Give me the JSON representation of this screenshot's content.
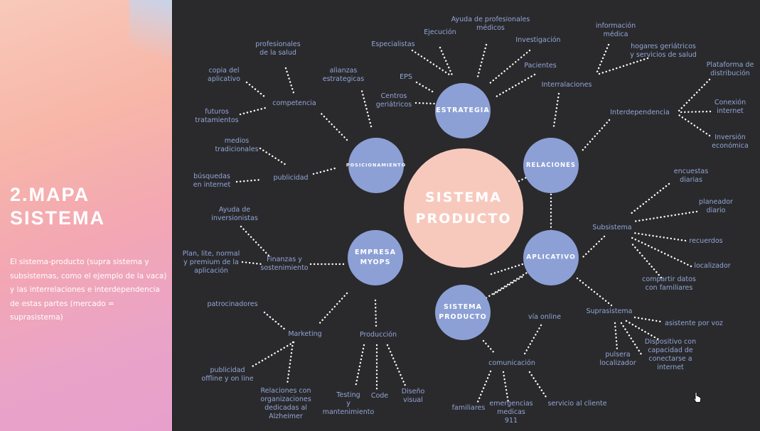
{
  "left_panel": {
    "title": "2.MAPA\nSISTEMA",
    "description": "El sistema-producto (supra sistema y subsistemas, como el ejemplo de la vaca) y las interrelaciones e interdependencia de estas partes (mercado = suprasistema)"
  },
  "colors": {
    "background": "#2a2a2c",
    "hub_fill": "#8ca0d6",
    "center_fill": "#f7c9bd",
    "label_text": "#93a6d8",
    "connector": "#ffffff"
  },
  "diagram": {
    "center": "SISTEMA\nPRODUCTO",
    "hubs": [
      {
        "id": "estrategia",
        "label": "ESTRATEGIA"
      },
      {
        "id": "relaciones",
        "label": "RELACIONES"
      },
      {
        "id": "aplicativo",
        "label": "APLICATIVO"
      },
      {
        "id": "sistema",
        "label": "SISTEMA\nPRODUCTO"
      },
      {
        "id": "empresa",
        "label": "EMPRESA\nMYOPS"
      },
      {
        "id": "posicionamiento",
        "label": "POSICIONAMIENTO"
      }
    ],
    "nodes": [
      {
        "id": "especialistas",
        "text": "Especialistas"
      },
      {
        "id": "ejecucion",
        "text": "Ejecución"
      },
      {
        "id": "ayuda_prof",
        "text": "Ayuda de profesionales\nmédicos"
      },
      {
        "id": "investigacion",
        "text": "Investigación"
      },
      {
        "id": "pacientes",
        "text": "Pacientes"
      },
      {
        "id": "eps",
        "text": "EPS"
      },
      {
        "id": "centros",
        "text": "Centros\ngeriátricos"
      },
      {
        "id": "info_medica",
        "text": "información\nmédica"
      },
      {
        "id": "hogares",
        "text": "hogares geriátricos\ny servicios de salud"
      },
      {
        "id": "interralaciones",
        "text": "Interralaciones"
      },
      {
        "id": "plataforma",
        "text": "Plataforma de\ndistribución"
      },
      {
        "id": "interdependencia",
        "text": "Interdependencia"
      },
      {
        "id": "conexion",
        "text": "Conexión\ninternet"
      },
      {
        "id": "inversion",
        "text": "Inversión\neconómica"
      },
      {
        "id": "encuestas",
        "text": "encuestas\ndiarias"
      },
      {
        "id": "planeador",
        "text": "planeador\ndiario"
      },
      {
        "id": "subsistema",
        "text": "Subsistema"
      },
      {
        "id": "recuerdos",
        "text": "recuerdos"
      },
      {
        "id": "localizador",
        "text": "localizador"
      },
      {
        "id": "compartir",
        "text": "compartir datos\ncon familiares"
      },
      {
        "id": "suprasistema",
        "text": "Suprasistema"
      },
      {
        "id": "asistente",
        "text": "asistente por voz"
      },
      {
        "id": "dispositivo",
        "text": "Dispositivo con\ncapacidad de\nconectarse a\ninternet"
      },
      {
        "id": "pulsera",
        "text": "pulsera\nlocalizador"
      },
      {
        "id": "via_online",
        "text": "vía online"
      },
      {
        "id": "comunicacion",
        "text": "comunicación"
      },
      {
        "id": "familiares",
        "text": "familiares"
      },
      {
        "id": "emergencias",
        "text": "emergencias\nmedicas\n911"
      },
      {
        "id": "servicio",
        "text": "servicio al cliente"
      },
      {
        "id": "produccion",
        "text": "Producción"
      },
      {
        "id": "testing",
        "text": "Testing\ny\nmantenimiento"
      },
      {
        "id": "code",
        "text": "Code"
      },
      {
        "id": "diseno",
        "text": "Diseño\nvisual"
      },
      {
        "id": "marketing",
        "text": "Marketing"
      },
      {
        "id": "patrocinadores",
        "text": "patrocinadores"
      },
      {
        "id": "publicidad_off",
        "text": "publicidad\noffline y on line"
      },
      {
        "id": "relaciones_org",
        "text": "Relaciones con\norganizaciones\ndedicadas al\nAlzheimer"
      },
      {
        "id": "ayuda_inv",
        "text": "Ayuda de\ninversionistas"
      },
      {
        "id": "finanzas",
        "text": "Finanzas y\nsostenimiento"
      },
      {
        "id": "plan_lite",
        "text": "Plan, lite, normal\ny premium de la\naplicación"
      },
      {
        "id": "profesionales",
        "text": "profesionales\nde la salud"
      },
      {
        "id": "copia",
        "text": "copia del\naplicativo"
      },
      {
        "id": "competencia",
        "text": "competencia"
      },
      {
        "id": "futuros",
        "text": "futuros\ntratamientos"
      },
      {
        "id": "alianzas",
        "text": "alianzas\nestrategicas"
      },
      {
        "id": "medios",
        "text": "medios\ntradicionales"
      },
      {
        "id": "publicidad",
        "text": "publicidad"
      },
      {
        "id": "busquedas",
        "text": "búsquedas\nen internet"
      }
    ]
  }
}
